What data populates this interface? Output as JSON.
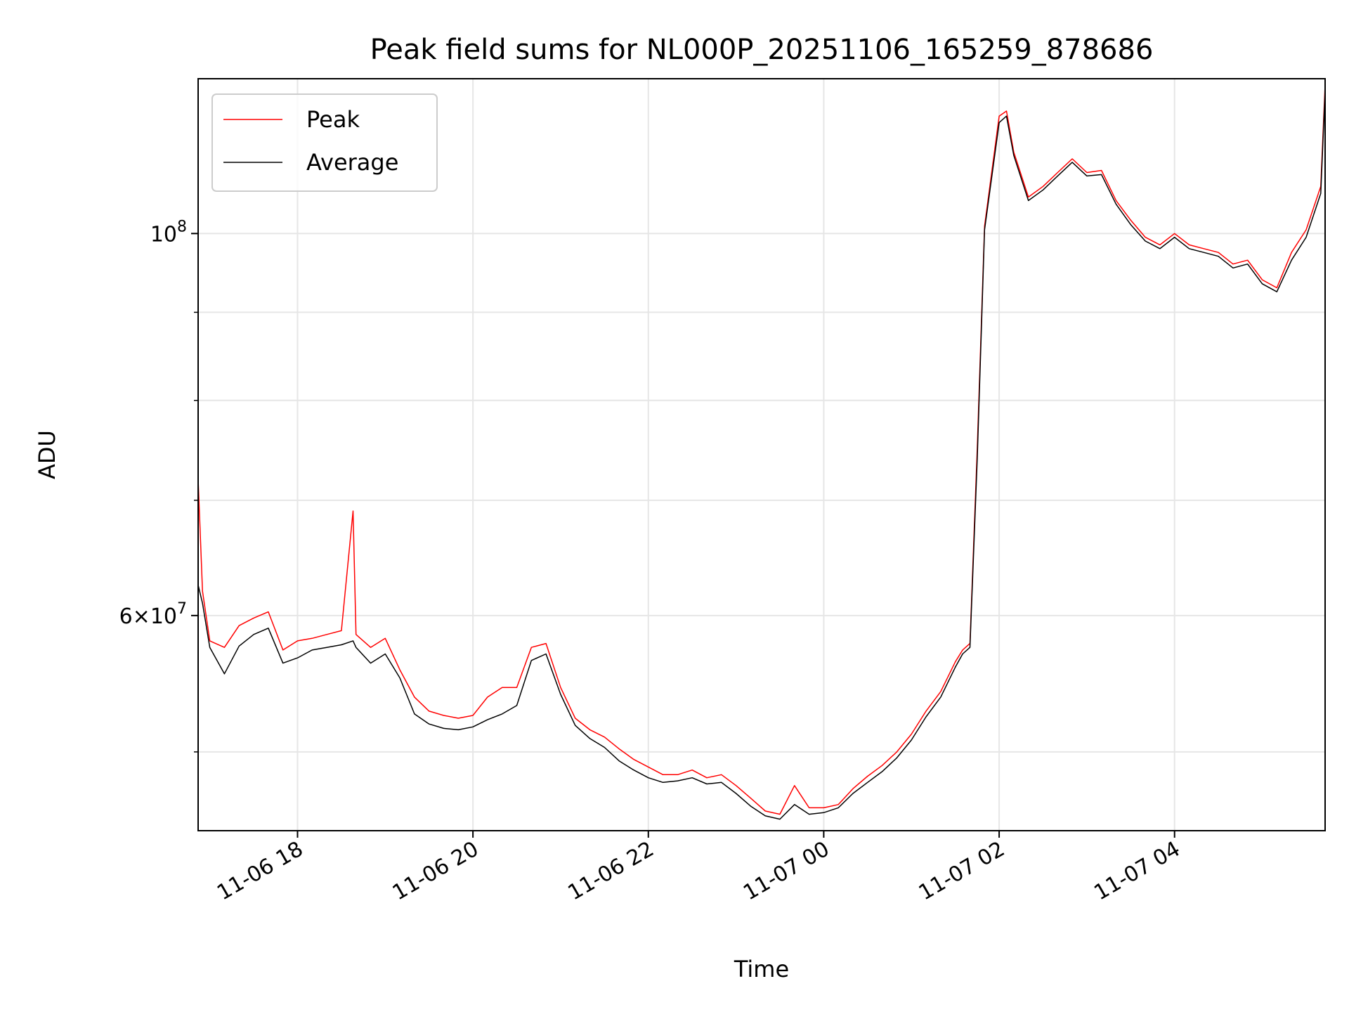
{
  "chart_data": {
    "type": "line",
    "title": "Peak field sums for NL000P_20251106_165259_878686",
    "xlabel": "Time",
    "ylabel": "ADU",
    "y_scale": "log",
    "grid": true,
    "legend_position": "top-left",
    "xlim": [
      "2025-11-06 16:52",
      "2025-11-07 05:43"
    ],
    "ylim": [
      45000000,
      123000000
    ],
    "x_ticks": [
      {
        "value": "2025-11-06 18:00",
        "label": "11-06 18"
      },
      {
        "value": "2025-11-06 20:00",
        "label": "11-06 20"
      },
      {
        "value": "2025-11-06 22:00",
        "label": "11-06 22"
      },
      {
        "value": "2025-11-07 00:00",
        "label": "11-07 00"
      },
      {
        "value": "2025-11-07 02:00",
        "label": "11-07 02"
      },
      {
        "value": "2025-11-07 04:00",
        "label": "11-07 04"
      }
    ],
    "y_major_ticks": [
      {
        "value": 60000000,
        "mantissa": "6",
        "exponent": "7"
      },
      {
        "value": 100000000,
        "mantissa": "",
        "exponent": "8"
      }
    ],
    "y_minor_ticks": [
      50000000,
      70000000,
      80000000,
      90000000
    ],
    "series": [
      {
        "name": "Peak",
        "color": "#ff0000",
        "x": [
          "2025-11-06 16:52",
          "2025-11-06 16:55",
          "2025-11-06 17:00",
          "2025-11-06 17:10",
          "2025-11-06 17:20",
          "2025-11-06 17:30",
          "2025-11-06 17:40",
          "2025-11-06 17:50",
          "2025-11-06 18:00",
          "2025-11-06 18:10",
          "2025-11-06 18:20",
          "2025-11-06 18:30",
          "2025-11-06 18:38",
          "2025-11-06 18:40",
          "2025-11-06 18:50",
          "2025-11-06 19:00",
          "2025-11-06 19:10",
          "2025-11-06 19:20",
          "2025-11-06 19:30",
          "2025-11-06 19:40",
          "2025-11-06 19:50",
          "2025-11-06 20:00",
          "2025-11-06 20:10",
          "2025-11-06 20:20",
          "2025-11-06 20:30",
          "2025-11-06 20:40",
          "2025-11-06 20:50",
          "2025-11-06 21:00",
          "2025-11-06 21:10",
          "2025-11-06 21:20",
          "2025-11-06 21:30",
          "2025-11-06 21:40",
          "2025-11-06 21:50",
          "2025-11-06 22:00",
          "2025-11-06 22:10",
          "2025-11-06 22:20",
          "2025-11-06 22:30",
          "2025-11-06 22:40",
          "2025-11-06 22:50",
          "2025-11-06 23:00",
          "2025-11-06 23:10",
          "2025-11-06 23:20",
          "2025-11-06 23:30",
          "2025-11-06 23:40",
          "2025-11-06 23:50",
          "2025-11-07 00:00",
          "2025-11-07 00:10",
          "2025-11-07 00:20",
          "2025-11-07 00:30",
          "2025-11-07 00:40",
          "2025-11-07 00:50",
          "2025-11-07 01:00",
          "2025-11-07 01:10",
          "2025-11-07 01:20",
          "2025-11-07 01:30",
          "2025-11-07 01:35",
          "2025-11-07 01:40",
          "2025-11-07 01:45",
          "2025-11-07 01:50",
          "2025-11-07 02:00",
          "2025-11-07 02:05",
          "2025-11-07 02:10",
          "2025-11-07 02:20",
          "2025-11-07 02:30",
          "2025-11-07 02:40",
          "2025-11-07 02:50",
          "2025-11-07 03:00",
          "2025-11-07 03:10",
          "2025-11-07 03:20",
          "2025-11-07 03:30",
          "2025-11-07 03:40",
          "2025-11-07 03:50",
          "2025-11-07 04:00",
          "2025-11-07 04:10",
          "2025-11-07 04:20",
          "2025-11-07 04:30",
          "2025-11-07 04:40",
          "2025-11-07 04:50",
          "2025-11-07 05:00",
          "2025-11-07 05:10",
          "2025-11-07 05:20",
          "2025-11-07 05:30",
          "2025-11-07 05:40",
          "2025-11-07 05:43"
        ],
        "values": [
          72000000,
          62000000,
          58000000,
          57500000,
          59200000,
          59800000,
          60300000,
          57300000,
          58000000,
          58200000,
          58500000,
          58800000,
          69000000,
          58500000,
          57500000,
          58200000,
          55800000,
          53800000,
          52800000,
          52500000,
          52300000,
          52500000,
          53800000,
          54500000,
          54500000,
          57500000,
          57800000,
          54500000,
          52300000,
          51500000,
          51000000,
          50200000,
          49500000,
          49000000,
          48500000,
          48500000,
          48800000,
          48300000,
          48500000,
          47800000,
          47000000,
          46200000,
          46000000,
          47800000,
          46400000,
          46400000,
          46600000,
          47600000,
          48400000,
          49100000,
          50000000,
          51200000,
          52800000,
          54200000,
          56400000,
          57300000,
          57800000,
          75000000,
          101000000,
          117000000,
          117800000,
          111500000,
          105000000,
          106500000,
          108500000,
          110500000,
          108500000,
          108800000,
          104500000,
          101800000,
          99500000,
          98500000,
          100000000,
          98500000,
          98000000,
          97500000,
          96000000,
          96500000,
          94000000,
          93000000,
          97500000,
          100500000,
          106500000,
          122000000
        ]
      },
      {
        "name": "Average",
        "color": "#000000",
        "x": [
          "2025-11-06 16:52",
          "2025-11-06 16:55",
          "2025-11-06 17:00",
          "2025-11-06 17:10",
          "2025-11-06 17:20",
          "2025-11-06 17:30",
          "2025-11-06 17:40",
          "2025-11-06 17:50",
          "2025-11-06 18:00",
          "2025-11-06 18:10",
          "2025-11-06 18:20",
          "2025-11-06 18:30",
          "2025-11-06 18:38",
          "2025-11-06 18:40",
          "2025-11-06 18:50",
          "2025-11-06 19:00",
          "2025-11-06 19:10",
          "2025-11-06 19:20",
          "2025-11-06 19:30",
          "2025-11-06 19:40",
          "2025-11-06 19:50",
          "2025-11-06 20:00",
          "2025-11-06 20:10",
          "2025-11-06 20:20",
          "2025-11-06 20:30",
          "2025-11-06 20:40",
          "2025-11-06 20:50",
          "2025-11-06 21:00",
          "2025-11-06 21:10",
          "2025-11-06 21:20",
          "2025-11-06 21:30",
          "2025-11-06 21:40",
          "2025-11-06 21:50",
          "2025-11-06 22:00",
          "2025-11-06 22:10",
          "2025-11-06 22:20",
          "2025-11-06 22:30",
          "2025-11-06 22:40",
          "2025-11-06 22:50",
          "2025-11-06 23:00",
          "2025-11-06 23:10",
          "2025-11-06 23:20",
          "2025-11-06 23:30",
          "2025-11-06 23:40",
          "2025-11-06 23:50",
          "2025-11-07 00:00",
          "2025-11-07 00:10",
          "2025-11-07 00:20",
          "2025-11-07 00:30",
          "2025-11-07 00:40",
          "2025-11-07 00:50",
          "2025-11-07 01:00",
          "2025-11-07 01:10",
          "2025-11-07 01:20",
          "2025-11-07 01:30",
          "2025-11-07 01:35",
          "2025-11-07 01:40",
          "2025-11-07 01:45",
          "2025-11-07 01:50",
          "2025-11-07 02:00",
          "2025-11-07 02:05",
          "2025-11-07 02:10",
          "2025-11-07 02:20",
          "2025-11-07 02:30",
          "2025-11-07 02:40",
          "2025-11-07 02:50",
          "2025-11-07 03:00",
          "2025-11-07 03:10",
          "2025-11-07 03:20",
          "2025-11-07 03:30",
          "2025-11-07 03:40",
          "2025-11-07 03:50",
          "2025-11-07 04:00",
          "2025-11-07 04:10",
          "2025-11-07 04:20",
          "2025-11-07 04:30",
          "2025-11-07 04:40",
          "2025-11-07 04:50",
          "2025-11-07 05:00",
          "2025-11-07 05:10",
          "2025-11-07 05:20",
          "2025-11-07 05:30",
          "2025-11-07 05:40",
          "2025-11-07 05:43"
        ],
        "values": [
          62500000,
          61000000,
          57500000,
          55500000,
          57600000,
          58500000,
          59000000,
          56300000,
          56700000,
          57300000,
          57500000,
          57700000,
          58000000,
          57500000,
          56300000,
          57000000,
          55200000,
          52600000,
          51900000,
          51600000,
          51500000,
          51700000,
          52200000,
          52600000,
          53200000,
          56500000,
          57000000,
          54000000,
          51800000,
          50900000,
          50300000,
          49400000,
          48800000,
          48300000,
          48000000,
          48100000,
          48300000,
          47900000,
          48000000,
          47300000,
          46500000,
          45900000,
          45700000,
          46600000,
          46000000,
          46100000,
          46400000,
          47300000,
          48000000,
          48700000,
          49600000,
          50800000,
          52400000,
          53800000,
          56000000,
          57000000,
          57500000,
          74000000,
          100500000,
          116000000,
          117000000,
          111000000,
          104500000,
          106000000,
          108000000,
          110000000,
          108000000,
          108200000,
          104000000,
          101200000,
          99000000,
          98000000,
          99500000,
          98000000,
          97500000,
          97000000,
          95500000,
          96000000,
          93500000,
          92500000,
          96500000,
          99500000,
          105500000,
          121000000
        ]
      }
    ]
  }
}
